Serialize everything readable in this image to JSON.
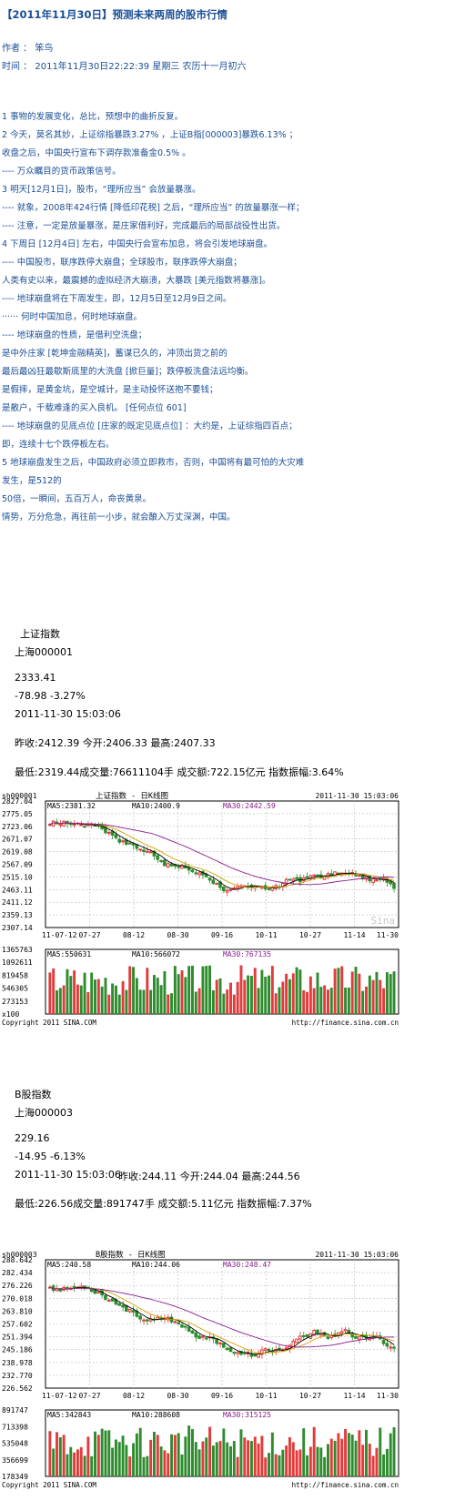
{
  "article": {
    "title": "【2011年11月30日】预测未来两周的股市行情",
    "author_label": "作者 ： 笨鸟",
    "time_label": "时间 ： 2011年11月30日22:22:39    星期三    农历十一月初六",
    "lines": [
      "1    事物的发展变化，总比，预想中的曲折反复。",
      "2    今天，莫名其妙，上证综指暴跌3.27% ，上证B指[000003]暴跌6.13% ；",
      "收盘之后，中国央行宣布下调存款准备金0.5% 。",
      "----  万众瞩目的货币政策信号。",
      "3    明天[12月1日]，股市，“理所应当” 会放量暴涨。",
      "----  就象，2008年424行情 [降低印花税] 之后，“理所应当” 的放量暴涨一样；",
      "----  注意，一定是放量暴涨，是庄家借利好，完成最后的局部战役性出货。",
      "4    下周日 [12月4日] 左右，中国央行会宣布加息，将会引发地球崩盘。",
      "----  中国股市，联序跌停大崩盘；全球股市，联序跌停大崩盘；",
      "人类有史以来，最震撼的虚拟经济大崩溃，大暴跌 [美元指数将暴涨]。",
      "----  地球崩盘将在下周发生，即，12月5日至12月9日之间。",
      "······  何时中国加息，何时地球崩盘。",
      "----  地球崩盘的性质，是借利空洗盘；",
      "是中外庄家 [乾坤金融精英]，蓄谋已久的，冲顶出货之前的",
      "最后最凶狂最歇斯底里的大洗盘 [掀巨量]；跌停板洗盘法远均衡。",
      "是假摔，是黄金坑，是空城计，是主动投怀送抱不要钱；",
      "是散户，千载难逢的买入良机。 [任何点位 601]",
      "----  地球崩盘的见底点位 [庄家的既定见底点位] ：大约是，上证综指四百点；",
      "即，连续十七个跌停板左右。",
      "5    地球崩盘发生之后，中国政府必须立即救市，否则，中国将有最可怕的大灾难",
      "发生，是512的",
      "50倍，一瞬间，五百万人，命丧黄泉。",
      "情势，万分危急，再往前一小步，就会酿入万丈深渊，中国。"
    ]
  },
  "quotes": [
    {
      "name": "上证指数",
      "code": "上海000001",
      "price": "2333.41",
      "change": "-78.98  -3.27%",
      "time": "2011-11-30 15:03:06",
      "line1": "昨收:2412.39 今开:2406.33 最高:2407.33",
      "line2": "最低:2319.44成交量:76611104手 成交额:722.15亿元 指数振幅:3.64%",
      "chart": {
        "code": "sh000001",
        "title": "上证指数 - 日K线图",
        "datetime": "2011-11-30 15:03:06",
        "ma5": "MA5:2381.32",
        "ma10": "MA10:2400.9",
        "ma30": "MA30:2442.59",
        "y_ticks": [
          "2827.04",
          "2775.05",
          "2723.06",
          "2671.07",
          "2619.08",
          "2567.09",
          "2515.10",
          "2463.11",
          "2411.12",
          "2359.13",
          "2307.14"
        ],
        "x_ticks": [
          "11-07-12",
          "07-27",
          "08-12",
          "08-30",
          "09-16",
          "10-11",
          "10-27",
          "11-14",
          "11-30"
        ],
        "vol_ticks": [
          "1365763",
          "1092611",
          "819458",
          "546305",
          "273153",
          "x100"
        ],
        "vma5": "MA5:550631",
        "vma10": "MA10:566072",
        "vma30": "MA30:767135",
        "copyright": "Copyright 2011 SINA.COM",
        "url": "http://finance.sina.com.cn",
        "watermark": "Sina"
      }
    },
    {
      "name": "B股指数",
      "code": "上海000003",
      "price": "229.16",
      "change": "-14.95  -6.13%",
      "time": "2011-11-30 15:03:06",
      "line1": "昨收:244.11 今开:244.04 最高:244.56",
      "line2": "最低:226.56成交量:891747手 成交额:5.11亿元 指数振幅:7.37%",
      "chart": {
        "code": "sh000003",
        "title": "B股指数 - 日K线图",
        "datetime": "2011-11-30 15:03:06",
        "ma5": "MA5:240.58",
        "ma10": "MA10:244.06",
        "ma30": "MA30:248.47",
        "y_ticks": [
          "288.642",
          "282.434",
          "276.226",
          "270.018",
          "263.810",
          "257.602",
          "251.394",
          "245.186",
          "238.978",
          "232.770",
          "226.562"
        ],
        "x_ticks": [
          "11-07-12",
          "07-27",
          "08-12",
          "08-30",
          "09-16",
          "10-11",
          "10-27",
          "11-14",
          "11-30"
        ],
        "vol_ticks": [
          "891747",
          "713398",
          "535048",
          "356699",
          "178349"
        ],
        "vma5": "MA5:342843",
        "vma10": "MA10:288608",
        "vma30": "MA30:315125",
        "copyright": "Copyright 2011 SINA.COM",
        "url": "http://finance.sina.com.cn",
        "watermark": ""
      }
    }
  ],
  "colors": {
    "text_blue": "#1a4e96",
    "up": "#e23b3b",
    "down": "#2e8b2e",
    "grid": "#bbbbbb"
  }
}
